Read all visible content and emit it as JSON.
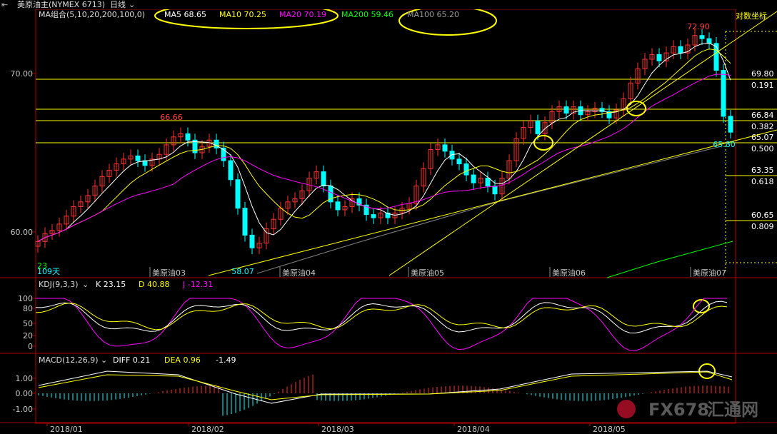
{
  "window": {
    "title": "美原油主(NYMEX 6713)",
    "period": "日线"
  },
  "header": {
    "ma_label": "MA组合(5,10,20,200,100,0)",
    "ma5": "MA5 68.65",
    "ma10": "MA10 70.25",
    "ma20": "MA20 70.19",
    "ma200": "MA200 59.46",
    "ma100": "MA100 65.20",
    "log_toggle": "对数坐标",
    "kdj_label": "KDJ(9,3,3)",
    "kdj_k": "K 23.15",
    "kdj_d": "D 40.88",
    "kdj_j": "J -12.31",
    "macd_label": "MACD(12,26,9)",
    "macd_diff": "DIFF 0.21",
    "macd_dea": "DEA 0.96",
    "macd_val": "-1.49"
  },
  "colors": {
    "ma5": "#ffffff",
    "ma10": "#ffff00",
    "ma20": "#ff00ff",
    "ma200": "#00ff00",
    "ma100": "#808080",
    "up": "#ff3030",
    "down": "#00ffff",
    "fib": "#ffff00",
    "circle": "#ffff00"
  },
  "chart_data": [
    {
      "type": "candlestick",
      "title": "",
      "y_axis_labels": [
        "70.00",
        "60.00"
      ],
      "x_contract_labels": [
        "美原油03",
        "美原油04",
        "美原油05",
        "美原油06",
        "美原油07"
      ],
      "x_date_labels": [
        "2018/01",
        "2018/02",
        "2018/03",
        "2018/04",
        "2018/05"
      ],
      "annotations": {
        "high_1": "66.66",
        "low_1": "58.07",
        "high_2": "72.90",
        "last_low": "65.80",
        "days_label": "109天",
        "ma_edge": "23"
      },
      "fib_levels": [
        {
          "price": "69.80",
          "ratio": "0.191"
        },
        {
          "price": "66.84",
          "ratio": "0.382"
        },
        {
          "price": "65.07",
          "ratio": "0.500"
        },
        {
          "price": "63.35",
          "ratio": "0.618"
        },
        {
          "price": "60.65",
          "ratio": "0.809"
        }
      ]
    },
    {
      "type": "line",
      "title": "KDJ(9,3,3)",
      "y_ticks": [
        "100",
        "80",
        "50",
        "20",
        "0"
      ]
    },
    {
      "type": "bar",
      "title": "MACD(12,26,9)",
      "y_ticks": [
        "1.00",
        "0.00",
        "-1.00"
      ]
    }
  ],
  "watermark": {
    "text": "FX678",
    "sub": "汇通网"
  }
}
